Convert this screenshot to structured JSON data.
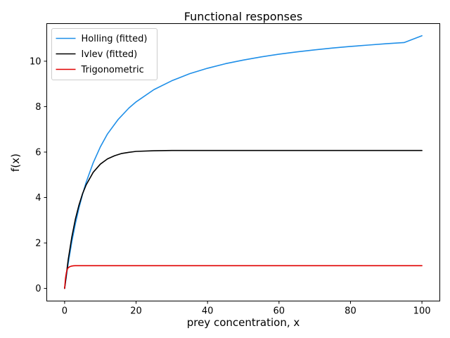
{
  "chart_data": {
    "type": "line",
    "title": "Functional responses",
    "xlabel": "prey concentration, x",
    "ylabel": "f(x)",
    "xlim": [
      -5,
      105
    ],
    "ylim": [
      -0.5555,
      11.6555
    ],
    "xticks": [
      0,
      20,
      40,
      60,
      80,
      100
    ],
    "yticks": [
      0,
      2,
      4,
      6,
      8,
      10
    ],
    "grid": false,
    "legend_position": "top-left",
    "series": [
      {
        "name": "Holling (fitted)",
        "color": "#1f8fe8",
        "x": [
          0,
          1,
          2,
          3,
          4,
          5,
          6,
          8,
          10,
          12,
          15,
          18,
          20,
          25,
          30,
          35,
          40,
          45,
          50,
          55,
          60,
          65,
          70,
          75,
          80,
          85,
          90,
          95,
          100
        ],
        "y": [
          0,
          1.1,
          2.04,
          2.84,
          3.53,
          4.13,
          4.66,
          5.53,
          6.23,
          6.8,
          7.44,
          7.94,
          8.21,
          8.75,
          9.14,
          9.45,
          9.69,
          9.89,
          10.05,
          10.19,
          10.31,
          10.41,
          10.5,
          10.58,
          10.65,
          10.71,
          10.77,
          10.82,
          11.12
        ]
      },
      {
        "name": "Ivlev (fitted)",
        "color": "#000000",
        "x": [
          0,
          1,
          2,
          3,
          4,
          5,
          6,
          8,
          10,
          12,
          14,
          16,
          18,
          20,
          25,
          30,
          40,
          50,
          60,
          70,
          80,
          90,
          100
        ],
        "y": [
          0,
          1.26,
          2.25,
          3.04,
          3.66,
          4.16,
          4.55,
          5.11,
          5.47,
          5.7,
          5.84,
          5.94,
          5.99,
          6.03,
          6.06,
          6.07,
          6.07,
          6.07,
          6.07,
          6.07,
          6.07,
          6.07,
          6.07
        ]
      },
      {
        "name": "Trigonometric",
        "color": "#e00000",
        "x": [
          0,
          0.25,
          0.5,
          0.75,
          1,
          1.5,
          2,
          2.5,
          3,
          4,
          5,
          10,
          20,
          40,
          60,
          80,
          100
        ],
        "y": [
          0,
          0.45,
          0.7,
          0.84,
          0.91,
          0.96,
          0.985,
          0.995,
          1.0,
          1.0,
          1.0,
          1.0,
          1.0,
          1.0,
          1.0,
          1.0,
          1.0
        ]
      }
    ]
  }
}
